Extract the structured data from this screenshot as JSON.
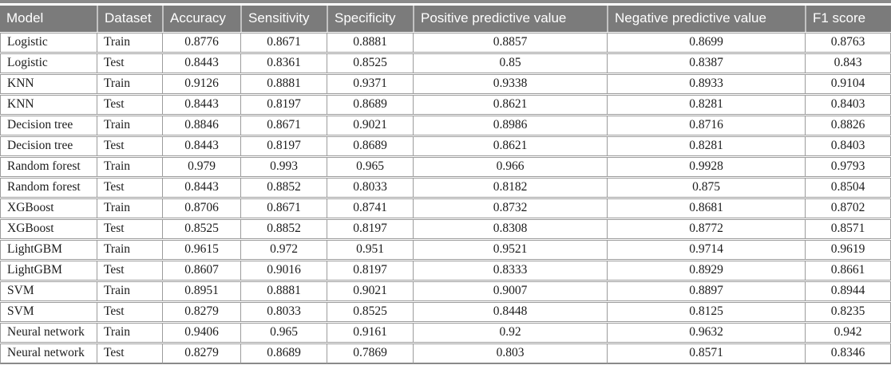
{
  "table": {
    "columns": [
      {
        "key": "model",
        "label": "Model",
        "align": "left"
      },
      {
        "key": "dataset",
        "label": "Dataset",
        "align": "left"
      },
      {
        "key": "accuracy",
        "label": "Accuracy",
        "align": "center"
      },
      {
        "key": "sensitivity",
        "label": "Sensitivity",
        "align": "center"
      },
      {
        "key": "specificity",
        "label": "Specificity",
        "align": "center"
      },
      {
        "key": "ppv",
        "label": "Positive predictive value",
        "align": "center"
      },
      {
        "key": "npv",
        "label": "Negative predictive value",
        "align": "center"
      },
      {
        "key": "f1",
        "label": "F1 score",
        "align": "center"
      }
    ],
    "rows": [
      {
        "model": "Logistic",
        "dataset": "Train",
        "accuracy": "0.8776",
        "sensitivity": "0.8671",
        "specificity": "0.8881",
        "ppv": "0.8857",
        "npv": "0.8699",
        "f1": "0.8763"
      },
      {
        "model": "Logistic",
        "dataset": "Test",
        "accuracy": "0.8443",
        "sensitivity": "0.8361",
        "specificity": "0.8525",
        "ppv": "0.85",
        "npv": "0.8387",
        "f1": "0.843"
      },
      {
        "model": "KNN",
        "dataset": "Train",
        "accuracy": "0.9126",
        "sensitivity": "0.8881",
        "specificity": "0.9371",
        "ppv": "0.9338",
        "npv": "0.8933",
        "f1": "0.9104"
      },
      {
        "model": "KNN",
        "dataset": "Test",
        "accuracy": "0.8443",
        "sensitivity": "0.8197",
        "specificity": "0.8689",
        "ppv": "0.8621",
        "npv": "0.8281",
        "f1": "0.8403"
      },
      {
        "model": "Decision tree",
        "dataset": "Train",
        "accuracy": "0.8846",
        "sensitivity": "0.8671",
        "specificity": "0.9021",
        "ppv": "0.8986",
        "npv": "0.8716",
        "f1": "0.8826"
      },
      {
        "model": "Decision tree",
        "dataset": "Test",
        "accuracy": "0.8443",
        "sensitivity": "0.8197",
        "specificity": "0.8689",
        "ppv": "0.8621",
        "npv": "0.8281",
        "f1": "0.8403"
      },
      {
        "model": "Random forest",
        "dataset": "Train",
        "accuracy": "0.979",
        "sensitivity": "0.993",
        "specificity": "0.965",
        "ppv": "0.966",
        "npv": "0.9928",
        "f1": "0.9793"
      },
      {
        "model": "Random forest",
        "dataset": "Test",
        "accuracy": "0.8443",
        "sensitivity": "0.8852",
        "specificity": "0.8033",
        "ppv": "0.8182",
        "npv": "0.875",
        "f1": "0.8504"
      },
      {
        "model": "XGBoost",
        "dataset": "Train",
        "accuracy": "0.8706",
        "sensitivity": "0.8671",
        "specificity": "0.8741",
        "ppv": "0.8732",
        "npv": "0.8681",
        "f1": "0.8702"
      },
      {
        "model": "XGBoost",
        "dataset": "Test",
        "accuracy": "0.8525",
        "sensitivity": "0.8852",
        "specificity": "0.8197",
        "ppv": "0.8308",
        "npv": "0.8772",
        "f1": "0.8571"
      },
      {
        "model": "LightGBM",
        "dataset": "Train",
        "accuracy": "0.9615",
        "sensitivity": "0.972",
        "specificity": "0.951",
        "ppv": "0.9521",
        "npv": "0.9714",
        "f1": "0.9619"
      },
      {
        "model": "LightGBM",
        "dataset": "Test",
        "accuracy": "0.8607",
        "sensitivity": "0.9016",
        "specificity": "0.8197",
        "ppv": "0.8333",
        "npv": "0.8929",
        "f1": "0.8661"
      },
      {
        "model": "SVM",
        "dataset": "Train",
        "accuracy": "0.8951",
        "sensitivity": "0.8881",
        "specificity": "0.9021",
        "ppv": "0.9007",
        "npv": "0.8897",
        "f1": "0.8944"
      },
      {
        "model": "SVM",
        "dataset": "Test",
        "accuracy": "0.8279",
        "sensitivity": "0.8033",
        "specificity": "0.8525",
        "ppv": "0.8448",
        "npv": "0.8125",
        "f1": "0.8235"
      },
      {
        "model": "Neural network",
        "dataset": "Train",
        "accuracy": "0.9406",
        "sensitivity": "0.965",
        "specificity": "0.9161",
        "ppv": "0.92",
        "npv": "0.9632",
        "f1": "0.942"
      },
      {
        "model": "Neural network",
        "dataset": "Test",
        "accuracy": "0.8279",
        "sensitivity": "0.8689",
        "specificity": "0.7869",
        "ppv": "0.803",
        "npv": "0.8571",
        "f1": "0.8346"
      }
    ]
  },
  "colors": {
    "header_background": "#7b7b7b",
    "header_text": "#ffffff",
    "cell_border": "#9c9c9c",
    "strong_rule": "#8a8a8a",
    "body_text": "#1c1c1c"
  }
}
